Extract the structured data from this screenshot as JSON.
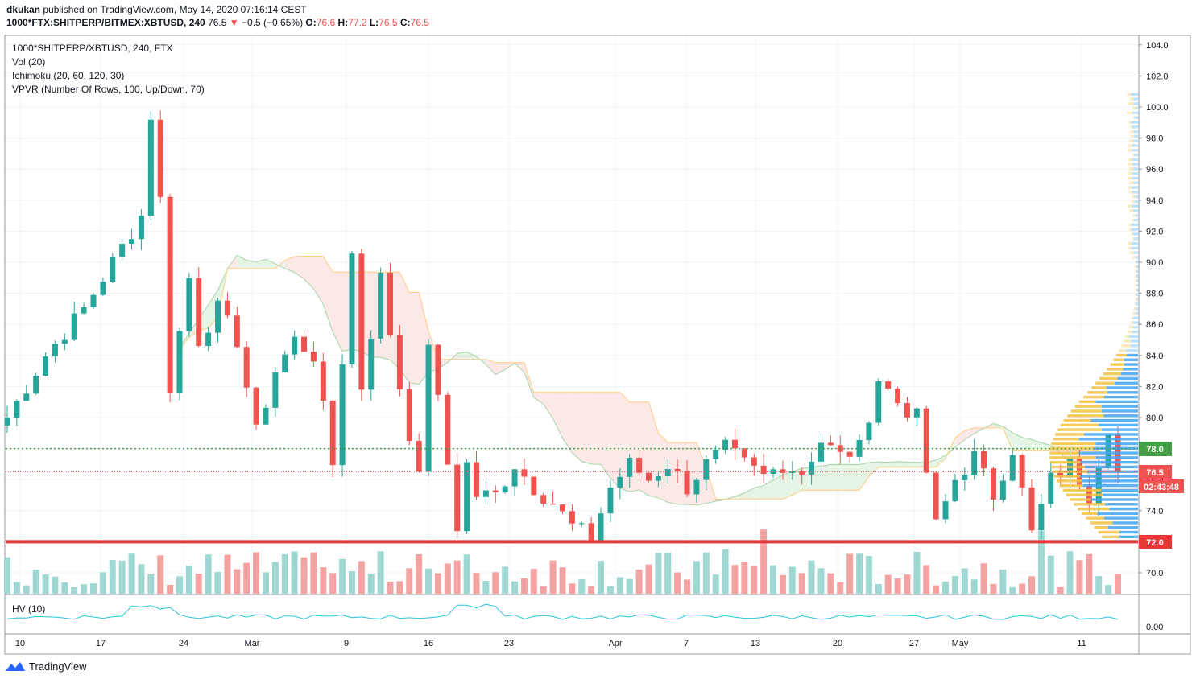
{
  "header": {
    "publisher": "dkukan",
    "published_text": "published on TradingView.com, May 14, 2020 07:16:14 CEST",
    "symbol_line": "1000*FTX:SHITPERP/BITMEX:XBTUSD, 240",
    "last": "76.5",
    "change_arrow": "▼",
    "change": "−0.5 (−0.65%)",
    "o_label": "O:",
    "o": "76.6",
    "h_label": "H:",
    "h": "77.2",
    "l_label": "L:",
    "l": "76.5",
    "c_label": "C:",
    "c": "76.5"
  },
  "legend": {
    "title": "1000*SHITPERP/XBTUSD, 240, FTX",
    "vol": "Vol (20)",
    "ichimoku": "Ichimoku (20, 60, 120, 30)",
    "vpvr": "VPVR (Number Of Rows, 100, Up/Down, 70)",
    "hv": "HV (10)"
  },
  "price_labels": {
    "support": "72.0",
    "resistance": "78.0",
    "last": "76.5",
    "countdown": "02:43:48",
    "hv_zero": "0.00"
  },
  "footer": {
    "brand": "TradingView"
  },
  "colors": {
    "up": "#26a69a",
    "down": "#ef5350",
    "vol_up": "#9fd8d2",
    "vol_down": "#f4a3a3",
    "support_line": "#e53935",
    "resistance_line": "#43a047",
    "cloud_green": "#e6f4e6",
    "cloud_red": "#fde8e8",
    "vpvr_up": "#42a5f5",
    "vpvr_down": "#f5c242",
    "hv_line": "#26c6da"
  },
  "chart_data": {
    "type": "candlestick",
    "yaxis": {
      "range": [
        68.0,
        105.0
      ],
      "ticks": [
        "70.0",
        "72.0",
        "74.0",
        "76.0",
        "78.0",
        "80.0",
        "82.0",
        "84.0",
        "86.0",
        "88.0",
        "90.0",
        "92.0",
        "94.0",
        "96.0",
        "98.0",
        "100.0",
        "102.0",
        "104.0"
      ]
    },
    "xaxis": {
      "ticks": [
        "10",
        "17",
        "24",
        "Mar",
        "9",
        "16",
        "23",
        "Apr",
        "7",
        "13",
        "20",
        "27",
        "May",
        "11"
      ]
    },
    "support_level": 72.0,
    "resistance_level": 78.0,
    "last_price": 76.5,
    "close_path": [
      [
        0,
        80
      ],
      [
        4,
        84
      ],
      [
        8,
        87
      ],
      [
        11,
        90
      ],
      [
        14,
        93
      ],
      [
        15,
        99.5
      ],
      [
        16,
        94
      ],
      [
        17,
        82
      ],
      [
        19,
        89
      ],
      [
        20,
        85
      ],
      [
        22,
        87
      ],
      [
        24,
        85
      ],
      [
        26,
        79
      ],
      [
        28,
        83
      ],
      [
        30,
        85
      ],
      [
        32,
        84
      ],
      [
        34,
        77
      ],
      [
        36,
        90.5
      ],
      [
        37,
        82
      ],
      [
        39,
        89
      ],
      [
        41,
        82
      ],
      [
        43,
        76
      ],
      [
        44,
        85
      ],
      [
        46,
        77
      ],
      [
        47,
        73
      ],
      [
        48,
        77
      ],
      [
        49,
        75
      ],
      [
        51,
        75
      ],
      [
        53,
        77
      ],
      [
        55,
        75.5
      ],
      [
        57,
        74.5
      ],
      [
        59,
        73
      ],
      [
        61,
        72.3
      ],
      [
        63,
        75.5
      ],
      [
        65,
        77
      ],
      [
        67,
        76
      ],
      [
        69,
        77
      ],
      [
        71,
        75.5
      ],
      [
        73,
        77
      ],
      [
        75,
        78
      ],
      [
        77,
        77
      ],
      [
        79,
        76.2
      ],
      [
        81,
        77
      ],
      [
        83,
        76.5
      ],
      [
        85,
        78.5
      ],
      [
        87,
        77.5
      ],
      [
        89,
        78
      ],
      [
        91,
        82.5
      ],
      [
        93,
        81
      ],
      [
        95,
        80
      ],
      [
        97,
        73
      ],
      [
        99,
        76
      ],
      [
        101,
        77.5
      ],
      [
        103,
        75
      ],
      [
        105,
        78
      ],
      [
        107,
        72.5
      ],
      [
        109,
        76
      ],
      [
        111,
        77
      ],
      [
        113,
        75
      ],
      [
        115,
        79.5
      ],
      [
        116,
        76.5
      ]
    ]
  }
}
